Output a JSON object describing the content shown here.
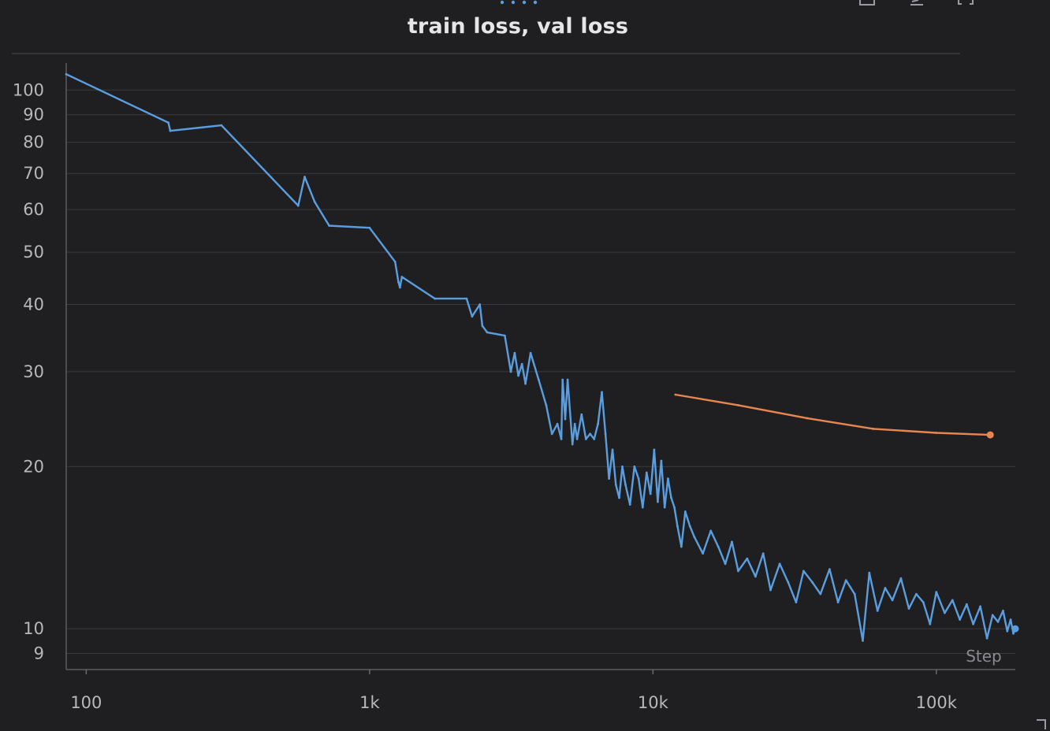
{
  "chart_data": {
    "type": "line",
    "title": "train loss, val loss",
    "xlabel": "Step",
    "ylabel": "",
    "x_scale": "log",
    "y_scale": "log",
    "xlim": [
      85,
      190000
    ],
    "ylim": [
      8.4,
      110
    ],
    "x_ticks": [
      {
        "value": 100,
        "label": "100"
      },
      {
        "value": 1000,
        "label": "1k"
      },
      {
        "value": 10000,
        "label": "10k"
      },
      {
        "value": 100000,
        "label": "100k"
      }
    ],
    "y_ticks": [
      {
        "value": 9,
        "label": "9"
      },
      {
        "value": 10,
        "label": "10"
      },
      {
        "value": 20,
        "label": "20"
      },
      {
        "value": 30,
        "label": "30"
      },
      {
        "value": 40,
        "label": "40"
      },
      {
        "value": 50,
        "label": "50"
      },
      {
        "value": 60,
        "label": "60"
      },
      {
        "value": 70,
        "label": "70"
      },
      {
        "value": 80,
        "label": "80"
      },
      {
        "value": 90,
        "label": "90"
      },
      {
        "value": 100,
        "label": "100"
      }
    ],
    "grid": true,
    "colors": {
      "train": "#5b9ee0",
      "val": "#e8864f",
      "background": "#1f1f21",
      "grid": "#3a3a3d"
    },
    "series": [
      {
        "key": "train",
        "x": [
          85,
          195,
          198,
          300,
          560,
          590,
          640,
          720,
          1000,
          1230,
          1265,
          1280,
          1300,
          1700,
          2200,
          2300,
          2450,
          2500,
          2600,
          3000,
          3150,
          3250,
          3350,
          3450,
          3550,
          3700,
          3950,
          4200,
          4400,
          4600,
          4750,
          4800,
          4900,
          5000,
          5200,
          5300,
          5400,
          5600,
          5800,
          6000,
          6200,
          6400,
          6600,
          6800,
          7000,
          7200,
          7400,
          7600,
          7800,
          8000,
          8300,
          8600,
          8900,
          9200,
          9500,
          9800,
          10100,
          10400,
          10700,
          11000,
          11300,
          11600,
          11900,
          12200,
          12600,
          13000,
          13500,
          14000,
          15000,
          16000,
          17000,
          18000,
          19000,
          20000,
          21500,
          23000,
          24500,
          26000,
          28000,
          30000,
          32000,
          34000,
          36500,
          39000,
          42000,
          45000,
          48000,
          51500,
          55000,
          58000,
          62000,
          66000,
          70000,
          75000,
          80000,
          85000,
          90000,
          95000,
          100000,
          107000,
          114000,
          121000,
          128000,
          135000,
          143000,
          151000,
          158000,
          165000,
          172000,
          178000,
          183000,
          187000,
          190000
        ],
        "values": [
          107,
          87,
          84,
          86,
          61,
          69,
          62,
          56,
          55.5,
          48,
          44,
          43,
          45,
          41,
          41,
          38,
          40,
          36.5,
          35.5,
          35,
          30,
          32.5,
          29.5,
          31,
          28.5,
          32.5,
          29,
          26,
          23,
          24,
          22.5,
          29,
          24.5,
          29,
          22,
          24,
          22.5,
          25,
          22.5,
          23,
          22.5,
          24,
          27.5,
          23,
          19,
          21.5,
          18.5,
          17.5,
          20,
          18.5,
          17,
          20,
          19,
          16.8,
          19.5,
          17.8,
          21.5,
          17.2,
          20.5,
          16.8,
          19,
          17.5,
          16.8,
          15.5,
          14.2,
          16.5,
          15.5,
          14.8,
          13.8,
          15.2,
          14.2,
          13.2,
          14.5,
          12.8,
          13.5,
          12.5,
          13.8,
          11.8,
          13.2,
          12.2,
          11.2,
          12.8,
          12.2,
          11.6,
          12.9,
          11.2,
          12.3,
          11.6,
          9.5,
          12.7,
          10.8,
          11.9,
          11.3,
          12.4,
          10.9,
          11.6,
          11.2,
          10.2,
          11.7,
          10.7,
          11.3,
          10.4,
          11.1,
          10.2,
          11,
          9.6,
          10.6,
          10.3,
          10.8,
          9.9,
          10.4,
          9.8,
          10
        ]
      },
      {
        "key": "val",
        "x": [
          12000,
          20000,
          35000,
          60000,
          100000,
          155000
        ],
        "values": [
          27.2,
          26,
          24.6,
          23.5,
          23.1,
          22.9
        ]
      }
    ]
  }
}
